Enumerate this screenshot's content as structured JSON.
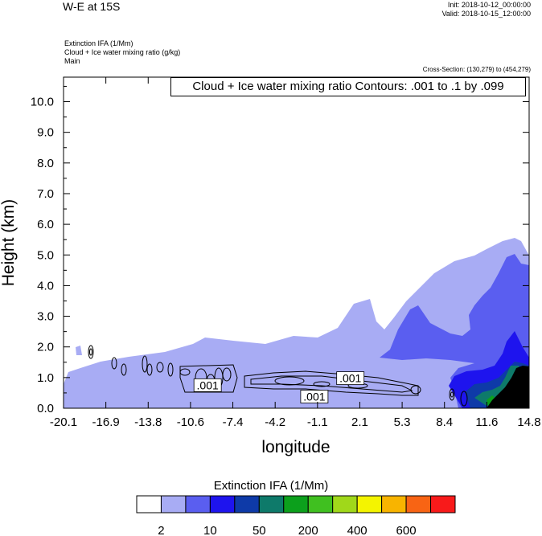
{
  "header": {
    "title": "W-E at 15S",
    "init": "Init: 2018-10-12_00:00:00",
    "valid": "Valid: 2018-10-15_12:00:00",
    "field1": "Extinction IFA   (1/Mm)",
    "field2": "Cloud + Ice water mixing ratio   (g/kg)",
    "field3": "Main",
    "cross_section": "Cross-Section: (130,279) to (454,279)"
  },
  "contour_label": "Cloud + Ice water mixing ratio Contours: .001 to .1 by .099",
  "chart_data": {
    "type": "heatmap",
    "xlabel": "longitude",
    "ylabel": "Height (km)",
    "x_ticks": [
      "-20.1",
      "-16.9",
      "-13.8",
      "-10.6",
      "-7.4",
      "-4.2",
      "-1.1",
      "2.1",
      "5.3",
      "8.4",
      "11.6",
      "14.8"
    ],
    "y_ticks": [
      "0.0",
      "1.0",
      "2.0",
      "3.0",
      "4.0",
      "5.0",
      "6.0",
      "7.0",
      "8.0",
      "9.0",
      "10.0"
    ],
    "xlim": [
      -20.1,
      14.8
    ],
    "ylim": [
      0,
      10.8
    ],
    "contour_labels": [
      {
        "text": ".001",
        "x": -9.3,
        "y": 0.75
      },
      {
        "text": ".001",
        "x": -1.3,
        "y": 0.38
      },
      {
        "text": ".001",
        "x": 1.4,
        "y": 0.98
      }
    ],
    "colorbar": {
      "title": "Extinction IFA  (1/Mm)",
      "colors": [
        "#ffffff",
        "#a8acf4",
        "#5a5ef0",
        "#1e14ee",
        "#0e3aa8",
        "#0e7a6a",
        "#0ca01c",
        "#40c020",
        "#a0d81a",
        "#f4f400",
        "#f8b400",
        "#f86414",
        "#f81a1a"
      ],
      "labels": [
        "2",
        "10",
        "50",
        "200",
        "400",
        "600"
      ]
    }
  }
}
